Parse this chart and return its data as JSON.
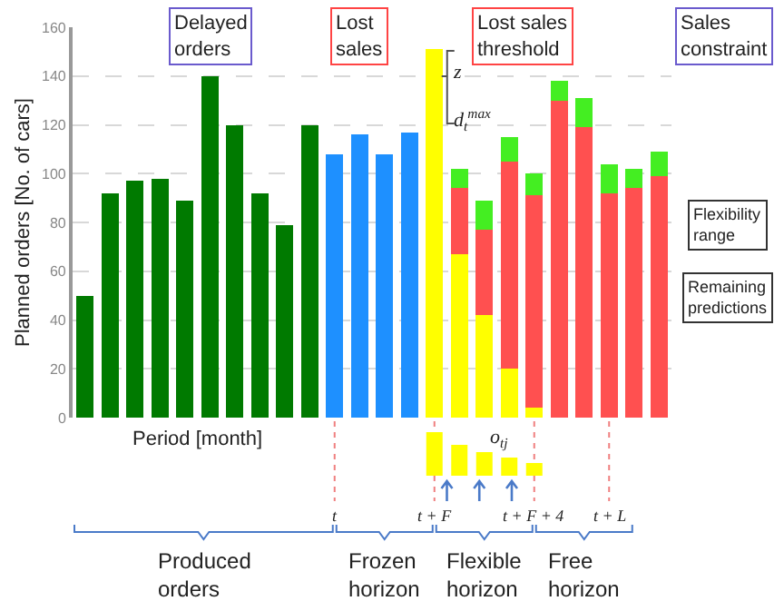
{
  "chart_data": {
    "type": "bar",
    "stacked": true,
    "xlabel": "Period [month]",
    "ylabel": "Planned orders [No. of cars]",
    "categories": [
      null,
      null,
      null,
      null,
      null,
      null,
      null,
      null,
      null,
      null,
      null,
      null,
      null,
      null,
      null,
      null,
      null,
      null,
      null,
      null,
      null,
      null,
      null,
      null
    ],
    "series": [
      {
        "colors": [
          "#007a00",
          "#007a00",
          "#007a00",
          "#007a00",
          "#007a00",
          "#007a00",
          "#007a00",
          "#007a00",
          "#007a00",
          "#007a00",
          "#1e90ff",
          "#1e90ff",
          "#1e90ff",
          "#1e90ff",
          "#ffff00",
          "#ffff00",
          "#ffff00",
          "#ffff00",
          "#ffff00",
          null,
          null,
          null,
          null,
          null
        ],
        "values": [
          50,
          92,
          97,
          98,
          89,
          140,
          120,
          92,
          79,
          120,
          108,
          116,
          108,
          117,
          151,
          67,
          42,
          20,
          4,
          null,
          null,
          null,
          null,
          null
        ]
      },
      {
        "color": "#ff5050",
        "values": [
          null,
          null,
          null,
          null,
          null,
          null,
          null,
          null,
          null,
          null,
          null,
          null,
          null,
          null,
          null,
          27,
          35,
          85,
          87,
          130,
          119,
          92,
          94,
          99
        ]
      },
      {
        "color": "#44ee22",
        "values": [
          null,
          null,
          null,
          null,
          null,
          null,
          null,
          null,
          null,
          null,
          null,
          null,
          null,
          null,
          null,
          8,
          12,
          10,
          9,
          8,
          12,
          12,
          8,
          10
        ]
      }
    ],
    "ylim": [
      0,
      160
    ],
    "yticks": [
      0,
      20,
      40,
      60,
      80,
      100,
      120,
      140,
      160
    ],
    "grid": "y",
    "tick_labels": "y",
    "annotations": [
      "Delayed orders",
      "Lost sales",
      "Lost sales threshold",
      "Sales constraint",
      "z",
      "d$_{t}$$^{max}$",
      "Flexibility range",
      "Remaining predictions",
      "o$_{tj}$",
      "t",
      "t + F",
      "t + F + 4",
      "t + L",
      "Produced orders",
      "Frozen horizon",
      "Flexible horizon",
      "Free horizon"
    ]
  }
}
